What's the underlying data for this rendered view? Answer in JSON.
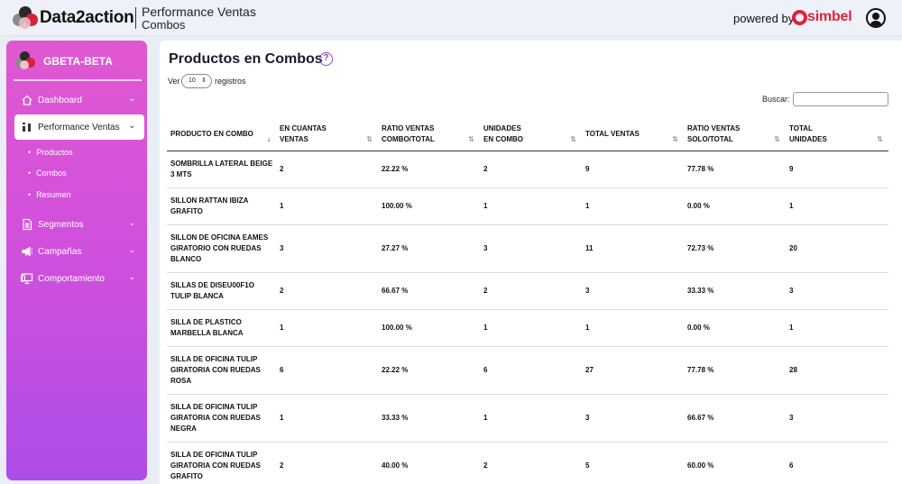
{
  "header": {
    "brand": "Data2action",
    "title": "Performance Ventas",
    "subtitle": "Combos",
    "powered_by": "powered by",
    "partner": "simbel"
  },
  "sidebar": {
    "org": "GBETA-BETA",
    "items": [
      {
        "label": "Dashboard",
        "icon": "home-icon"
      },
      {
        "label": "Performance Ventas",
        "icon": "chart-icon"
      },
      {
        "label": "Segmentos",
        "icon": "document-icon"
      },
      {
        "label": "Campañas",
        "icon": "megaphone-icon"
      },
      {
        "label": "Comportamiento",
        "icon": "monitor-icon"
      }
    ],
    "subitems": [
      "Productos",
      "Combos",
      "Resumen"
    ]
  },
  "main": {
    "title": "Productos en Combos",
    "length_prefix": "Ver",
    "length_value": "10",
    "length_suffix": "registros",
    "search_label": "Buscar:",
    "search_value": ""
  },
  "table": {
    "headers": [
      [
        "PRODUCTO EN COMBO"
      ],
      [
        "EN CUANTAS",
        "VENTAS"
      ],
      [
        "RATIO VENTAS",
        "COMBO/TOTAL"
      ],
      [
        "UNIDADES",
        "EN COMBO"
      ],
      [
        "TOTAL VENTAS"
      ],
      [
        "RATIO VENTAS",
        "SOLO/TOTAL"
      ],
      [
        "TOTAL",
        "UNIDADES"
      ]
    ],
    "rows": [
      {
        "product": [
          "SOMBRILLA LATERAL BEIGE",
          "3 MTS"
        ],
        "en_cuantas": "2",
        "ratio_combo": "22.22 %",
        "unidades_combo": "2",
        "total_ventas": "9",
        "ratio_solo": "77.78 %",
        "total_unidades": "9"
      },
      {
        "product": [
          "SILLON RATTAN IBIZA",
          "GRAFITO"
        ],
        "en_cuantas": "1",
        "ratio_combo": "100.00 %",
        "unidades_combo": "1",
        "total_ventas": "1",
        "ratio_solo": "0.00 %",
        "total_unidades": "1"
      },
      {
        "product": [
          "SILLON DE OFICINA EAMES",
          "GIRATORIO CON RUEDAS",
          "BLANCO"
        ],
        "en_cuantas": "3",
        "ratio_combo": "27.27 %",
        "unidades_combo": "3",
        "total_ventas": "11",
        "ratio_solo": "72.73 %",
        "total_unidades": "20"
      },
      {
        "product": [
          "SILLAS DE DISEU00F1O",
          "TULIP BLANCA"
        ],
        "en_cuantas": "2",
        "ratio_combo": "66.67 %",
        "unidades_combo": "2",
        "total_ventas": "3",
        "ratio_solo": "33.33 %",
        "total_unidades": "3"
      },
      {
        "product": [
          "SILLA DE PLASTICO",
          "MARBELLA BLANCA"
        ],
        "en_cuantas": "1",
        "ratio_combo": "100.00 %",
        "unidades_combo": "1",
        "total_ventas": "1",
        "ratio_solo": "0.00 %",
        "total_unidades": "1"
      },
      {
        "product": [
          "SILLA DE OFICINA TULIP",
          "GIRATORIA CON RUEDAS",
          "ROSA"
        ],
        "en_cuantas": "6",
        "ratio_combo": "22.22 %",
        "unidades_combo": "6",
        "total_ventas": "27",
        "ratio_solo": "77.78 %",
        "total_unidades": "28"
      },
      {
        "product": [
          "SILLA DE OFICINA TULIP",
          "GIRATORIA CON RUEDAS",
          "NEGRA"
        ],
        "en_cuantas": "1",
        "ratio_combo": "33.33 %",
        "unidades_combo": "1",
        "total_ventas": "3",
        "ratio_solo": "66.67 %",
        "total_unidades": "3"
      },
      {
        "product": [
          "SILLA DE OFICINA TULIP",
          "GIRATORIA CON RUEDAS",
          "GRAFITO"
        ],
        "en_cuantas": "2",
        "ratio_combo": "40.00 %",
        "unidades_combo": "2",
        "total_ventas": "5",
        "ratio_solo": "60.00 %",
        "total_unidades": "6"
      }
    ]
  },
  "colors": {
    "sidebar_top": "#e158d0",
    "sidebar_bottom": "#ad4ee8",
    "accent": "#9b3fd6",
    "simbel_red": "#e0243c"
  }
}
